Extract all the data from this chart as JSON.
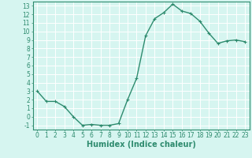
{
  "x": [
    0,
    1,
    2,
    3,
    4,
    5,
    6,
    7,
    8,
    9,
    10,
    11,
    12,
    13,
    14,
    15,
    16,
    17,
    18,
    19,
    20,
    21,
    22,
    23
  ],
  "y": [
    3.0,
    1.8,
    1.8,
    1.2,
    0.0,
    -1.0,
    -0.9,
    -1.0,
    -1.0,
    -0.8,
    2.0,
    4.5,
    9.5,
    11.5,
    12.2,
    13.2,
    12.4,
    12.1,
    11.2,
    9.8,
    8.6,
    8.9,
    9.0,
    8.8
  ],
  "line_color": "#2e8b6e",
  "marker_color": "#2e8b6e",
  "bg_color": "#d6f5f0",
  "grid_major_color": "#ffffff",
  "grid_minor_color": "#c8aaaa",
  "xlabel": "Humidex (Indice chaleur)",
  "xlim": [
    -0.5,
    23.5
  ],
  "ylim": [
    -1.5,
    13.5
  ],
  "yticks": [
    -1,
    0,
    1,
    2,
    3,
    4,
    5,
    6,
    7,
    8,
    9,
    10,
    11,
    12,
    13
  ],
  "xticks": [
    0,
    1,
    2,
    3,
    4,
    5,
    6,
    7,
    8,
    9,
    10,
    11,
    12,
    13,
    14,
    15,
    16,
    17,
    18,
    19,
    20,
    21,
    22,
    23
  ],
  "xtick_labels": [
    "0",
    "1",
    "2",
    "3",
    "4",
    "5",
    "6",
    "7",
    "8",
    "9",
    "10",
    "11",
    "12",
    "13",
    "14",
    "15",
    "16",
    "17",
    "18",
    "19",
    "20",
    "21",
    "22",
    "23"
  ],
  "tick_color": "#2e8b6e",
  "axis_color": "#2e8b6e",
  "label_fontsize": 7,
  "tick_fontsize": 5.5
}
